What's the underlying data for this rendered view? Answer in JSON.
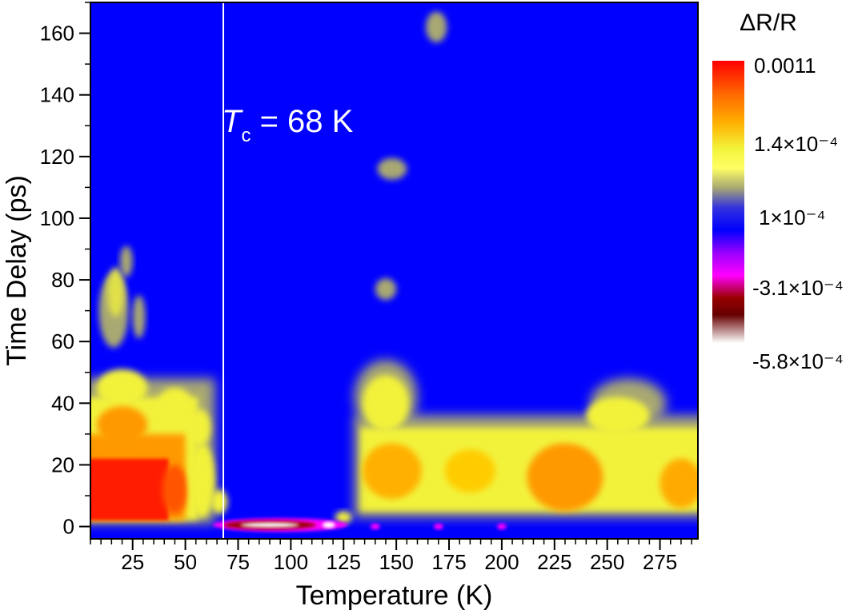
{
  "chart_data": {
    "type": "heatmap",
    "xlabel": "Temperature (K)",
    "ylabel": "Time Delay (ps)",
    "xlim": [
      5,
      293
    ],
    "ylim": [
      -4,
      170
    ],
    "xticks": [
      25,
      50,
      75,
      100,
      125,
      150,
      175,
      200,
      225,
      250,
      275
    ],
    "yticks": [
      0,
      20,
      40,
      60,
      80,
      100,
      120,
      140,
      160
    ],
    "x_minor_step": 5,
    "colorbar": {
      "title": "ΔR/R",
      "labels": [
        "0.0011",
        "1.4×10⁻⁴",
        "1×10⁻⁴",
        "-3.1×10⁻⁴",
        "-5.8×10⁻⁴"
      ],
      "colors": [
        "#ff0000",
        "#ff9900",
        "#f2f23a",
        "#ffff66",
        "#a8a872",
        "#1111ee",
        "#0000ff",
        "#9900ff",
        "#ff00ff",
        "#880000",
        "#ffffff"
      ]
    },
    "background_color": "#0000ff",
    "annotation": {
      "symbol": "T",
      "subscript": "c",
      "text": " = 68 K",
      "x": 68
    },
    "features": [
      {
        "x": 5,
        "y": 2,
        "w": 58,
        "h": 40,
        "level": "max",
        "desc": "low-T positive"
      },
      {
        "x": 132,
        "y": 5,
        "w": 161,
        "h": 38,
        "level": "mid",
        "desc": "high-T positive"
      },
      {
        "x": 60,
        "y": -2,
        "w": 65,
        "h": 5,
        "level": "min",
        "desc": "negative"
      },
      {
        "x": 165,
        "y": 160,
        "w": 8,
        "h": 10,
        "level": "weak"
      },
      {
        "x": 143,
        "y": 115,
        "w": 15,
        "h": 10,
        "level": "weak"
      },
      {
        "x": 143,
        "y": 77,
        "w": 12,
        "h": 8,
        "level": "weak"
      },
      {
        "x": 5,
        "y": 60,
        "w": 28,
        "h": 32,
        "level": "low"
      }
    ]
  }
}
